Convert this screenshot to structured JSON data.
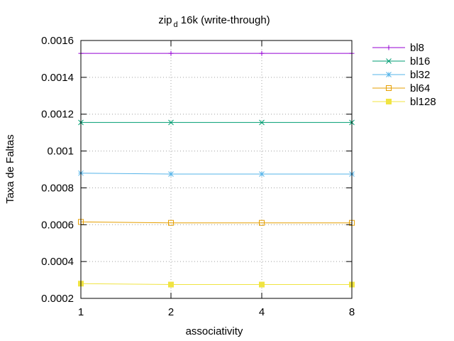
{
  "chart_data": {
    "type": "line",
    "title": {
      "main": "zip",
      "sub": "d",
      "rest": " 16k (write-through)"
    },
    "xlabel": "associativity",
    "ylabel": "Taxa de Faltas",
    "categories": [
      "1",
      "2",
      "4",
      "8"
    ],
    "ylim": [
      0.0002,
      0.0016
    ],
    "yticks": [
      "0.0002",
      "0.0004",
      "0.0006",
      "0.0008",
      "0.001",
      "0.0012",
      "0.0014",
      "0.0016"
    ],
    "ytick_values": [
      0.0002,
      0.0004,
      0.0006,
      0.0008,
      0.001,
      0.0012,
      0.0014,
      0.0016
    ],
    "grid": true,
    "legend_position": "outside-right",
    "series": [
      {
        "name": "bl8",
        "values": [
          0.00153,
          0.00153,
          0.00153,
          0.00153
        ],
        "color": "#9400d3",
        "marker": "plus"
      },
      {
        "name": "bl16",
        "values": [
          0.001155,
          0.001155,
          0.001155,
          0.001155
        ],
        "color": "#009e73",
        "marker": "cross"
      },
      {
        "name": "bl32",
        "values": [
          0.00088,
          0.000875,
          0.000875,
          0.000875
        ],
        "color": "#56b4e9",
        "marker": "star"
      },
      {
        "name": "bl64",
        "values": [
          0.000615,
          0.00061,
          0.00061,
          0.00061
        ],
        "color": "#e69f00",
        "marker": "open-square"
      },
      {
        "name": "bl128",
        "values": [
          0.00028,
          0.000275,
          0.000275,
          0.000275
        ],
        "color": "#f0e442",
        "marker": "filled-square"
      }
    ]
  }
}
